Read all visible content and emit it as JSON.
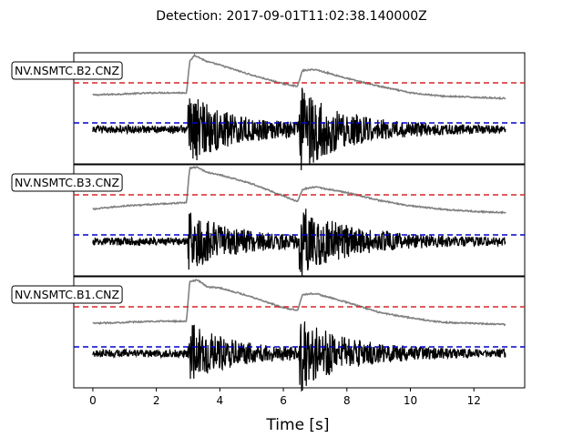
{
  "title": "Detection: 2017-09-01T11:02:38.140000Z",
  "chart_data": {
    "type": "line",
    "xlabel": "Time [s]",
    "xlim": [
      -0.6,
      13.6
    ],
    "xticks": [
      0,
      2,
      4,
      6,
      8,
      10,
      12
    ],
    "x_range": [
      0,
      13
    ],
    "grid": false,
    "events_s": [
      3.0,
      6.5
    ],
    "panels": [
      {
        "channel": "NV.NSMTC.B2.CNZ",
        "threshold_high_color": "#d62728",
        "threshold_low_color": "#0000cc",
        "envelope": [
          [
            0,
            0.62
          ],
          [
            2.0,
            0.64
          ],
          [
            2.95,
            0.64
          ],
          [
            3.05,
            0.92
          ],
          [
            3.2,
            0.98
          ],
          [
            3.6,
            0.92
          ],
          [
            4.0,
            0.89
          ],
          [
            5.0,
            0.8
          ],
          [
            6.0,
            0.72
          ],
          [
            6.45,
            0.7
          ],
          [
            6.6,
            0.84
          ],
          [
            7.0,
            0.85
          ],
          [
            8.0,
            0.77
          ],
          [
            9.0,
            0.7
          ],
          [
            10.0,
            0.64
          ],
          [
            11.0,
            0.61
          ],
          [
            12.0,
            0.6
          ],
          [
            13.0,
            0.59
          ]
        ],
        "bursts": [
          {
            "t": 3.0,
            "amp": 0.3,
            "decay": 1.4
          },
          {
            "t": 6.5,
            "amp": 0.34,
            "decay": 1.2
          }
        ]
      },
      {
        "channel": "NV.NSMTC.B3.CNZ",
        "threshold_high_color": "#d62728",
        "threshold_low_color": "#0000cc",
        "envelope": [
          [
            0,
            0.6
          ],
          [
            1.0,
            0.63
          ],
          [
            2.95,
            0.66
          ],
          [
            3.05,
            0.97
          ],
          [
            3.3,
            0.98
          ],
          [
            3.6,
            0.93
          ],
          [
            4.0,
            0.91
          ],
          [
            5.0,
            0.83
          ],
          [
            6.0,
            0.72
          ],
          [
            6.45,
            0.67
          ],
          [
            6.6,
            0.78
          ],
          [
            7.0,
            0.8
          ],
          [
            8.0,
            0.75
          ],
          [
            9.0,
            0.68
          ],
          [
            10.0,
            0.63
          ],
          [
            11.0,
            0.6
          ],
          [
            12.0,
            0.58
          ],
          [
            13.0,
            0.57
          ]
        ],
        "bursts": [
          {
            "t": 3.0,
            "amp": 0.24,
            "decay": 1.5
          },
          {
            "t": 6.5,
            "amp": 0.27,
            "decay": 1.3
          }
        ]
      },
      {
        "channel": "NV.NSMTC.B1.CNZ",
        "threshold_high_color": "#d62728",
        "threshold_low_color": "#0000cc",
        "envelope": [
          [
            0,
            0.58
          ],
          [
            2.0,
            0.6
          ],
          [
            2.95,
            0.6
          ],
          [
            3.05,
            0.96
          ],
          [
            3.3,
            0.97
          ],
          [
            3.6,
            0.91
          ],
          [
            4.0,
            0.9
          ],
          [
            5.0,
            0.82
          ],
          [
            6.0,
            0.72
          ],
          [
            6.45,
            0.7
          ],
          [
            6.6,
            0.84
          ],
          [
            7.0,
            0.85
          ],
          [
            8.0,
            0.77
          ],
          [
            9.0,
            0.68
          ],
          [
            10.0,
            0.63
          ],
          [
            11.0,
            0.59
          ],
          [
            12.0,
            0.58
          ],
          [
            13.0,
            0.57
          ]
        ],
        "bursts": [
          {
            "t": 3.0,
            "amp": 0.26,
            "decay": 1.3
          },
          {
            "t": 6.5,
            "amp": 0.3,
            "decay": 1.2
          }
        ]
      }
    ]
  }
}
